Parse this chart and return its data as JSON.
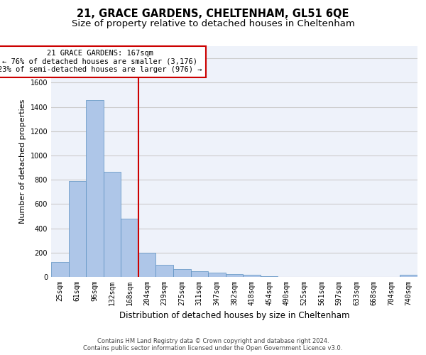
{
  "title1": "21, GRACE GARDENS, CHELTENHAM, GL51 6QE",
  "title2": "Size of property relative to detached houses in Cheltenham",
  "xlabel": "Distribution of detached houses by size in Cheltenham",
  "ylabel": "Number of detached properties",
  "footer1": "Contains HM Land Registry data © Crown copyright and database right 2024.",
  "footer2": "Contains public sector information licensed under the Open Government Licence v3.0.",
  "categories": [
    "25sqm",
    "61sqm",
    "96sqm",
    "132sqm",
    "168sqm",
    "204sqm",
    "239sqm",
    "275sqm",
    "311sqm",
    "347sqm",
    "382sqm",
    "418sqm",
    "454sqm",
    "490sqm",
    "525sqm",
    "561sqm",
    "597sqm",
    "633sqm",
    "668sqm",
    "704sqm",
    "740sqm"
  ],
  "values": [
    120,
    790,
    1455,
    865,
    480,
    200,
    100,
    65,
    45,
    35,
    25,
    15,
    5,
    0,
    0,
    0,
    0,
    0,
    0,
    0,
    15
  ],
  "bar_color": "#aec6e8",
  "bar_edge_color": "#5a8fc0",
  "vline_color": "#cc0000",
  "annotation_line1": "21 GRACE GARDENS: 167sqm",
  "annotation_line2": "← 76% of detached houses are smaller (3,176)",
  "annotation_line3": "23% of semi-detached houses are larger (976) →",
  "annotation_box_color": "#cc0000",
  "annotation_fontsize": 7.5,
  "ylim": [
    0,
    1900
  ],
  "yticks": [
    0,
    200,
    400,
    600,
    800,
    1000,
    1200,
    1400,
    1600,
    1800
  ],
  "grid_color": "#cccccc",
  "bg_color": "#eef2fa",
  "title1_fontsize": 10.5,
  "title2_fontsize": 9.5,
  "xlabel_fontsize": 8.5,
  "ylabel_fontsize": 8,
  "tick_fontsize": 7,
  "footer_fontsize": 6
}
